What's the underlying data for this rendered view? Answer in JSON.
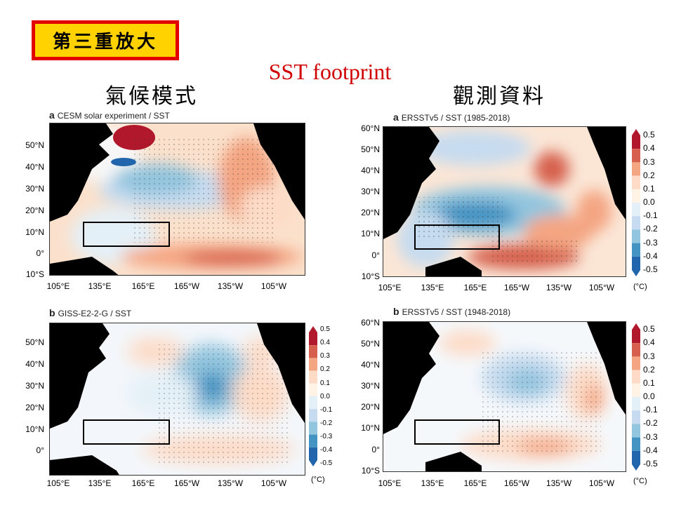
{
  "header": {
    "badge": "第三重放大",
    "title": "SST footprint",
    "left_title": "氣候模式",
    "right_title": "觀測資料"
  },
  "panels": {
    "a_model": {
      "letter": "a",
      "label": "CESM solar experiment / SST"
    },
    "b_model": {
      "letter": "b",
      "label": "GISS-E2-2-G / SST"
    },
    "a_obs": {
      "letter": "a",
      "label": "ERSSTv5 / SST (1985-2018)"
    },
    "b_obs": {
      "letter": "b",
      "label": "ERSSTv5 / SST (1948-2018)"
    }
  },
  "axes": {
    "lat_model": [
      "50°N",
      "40°N",
      "30°N",
      "20°N",
      "10°N",
      "0°",
      "10°S"
    ],
    "lat_obs": [
      "60°N",
      "50°N",
      "40°N",
      "30°N",
      "20°N",
      "10°N",
      "0°",
      "10°S"
    ],
    "lon": [
      "105°E",
      "135°E",
      "165°E",
      "165°W",
      "135°W",
      "105°W"
    ]
  },
  "colorbar": {
    "ticks": [
      "0.5",
      "0.4",
      "0.3",
      "0.2",
      "0.1",
      "0.0",
      "-0.1",
      "-0.2",
      "-0.3",
      "-0.4",
      "-0.5"
    ],
    "unit": "(°C)",
    "colors": [
      "#b2182b",
      "#d6604d",
      "#f4a582",
      "#fddbc7",
      "#fff3e6",
      "#f7f7f7",
      "#e4f0f7",
      "#c6dbef",
      "#92c5de",
      "#4393c3",
      "#2166ac"
    ]
  }
}
